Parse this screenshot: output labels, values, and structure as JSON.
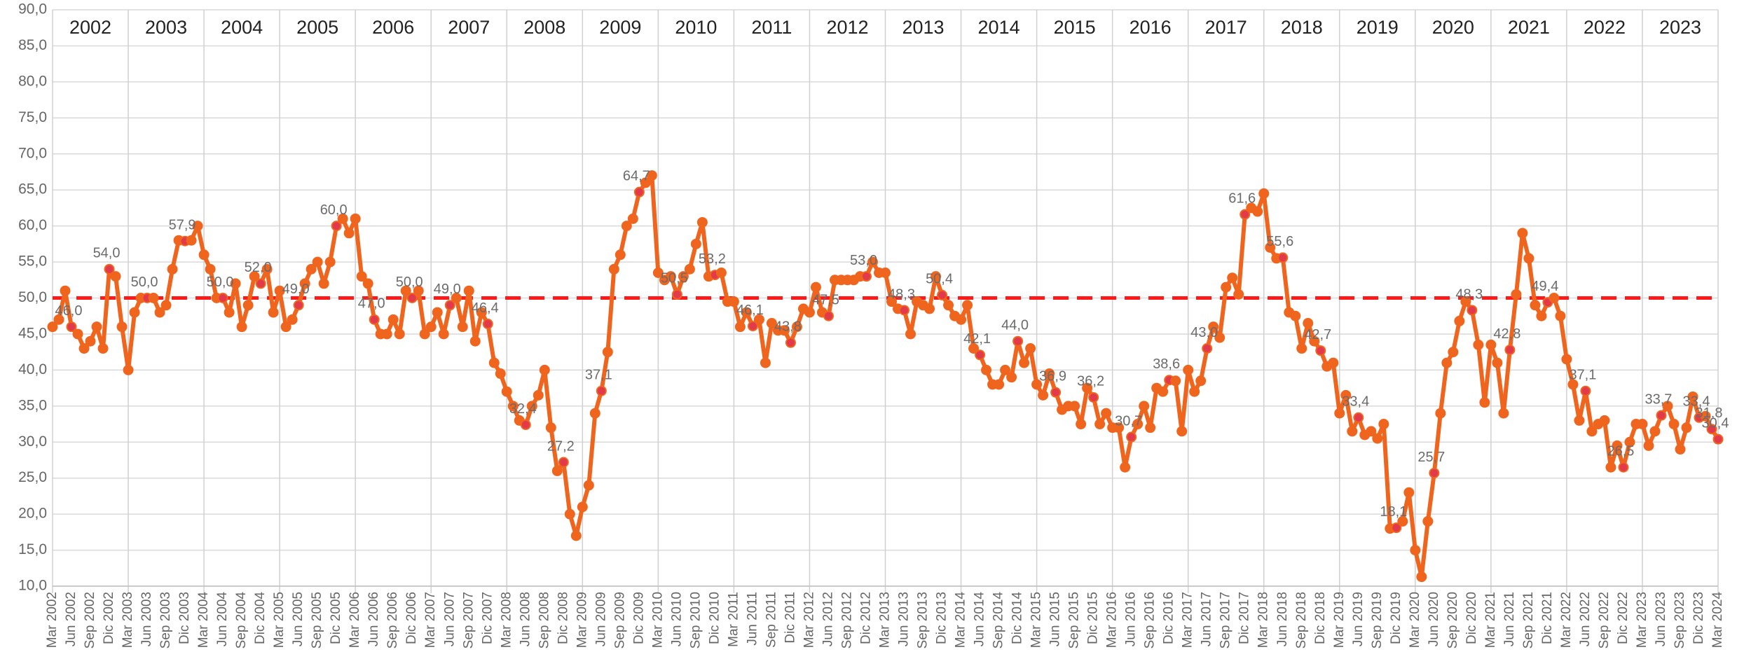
{
  "chart_data": {
    "type": "line",
    "periods": [
      "2002",
      "2003",
      "2004",
      "2005",
      "2006",
      "2007",
      "2008",
      "2009",
      "2010",
      "2011",
      "2012",
      "2013",
      "2014",
      "2015",
      "2016",
      "2017",
      "2018",
      "2019",
      "2020",
      "2021",
      "2022",
      "2023"
    ],
    "categories": [
      "Mar 2002",
      null,
      null,
      "Jun 2002",
      null,
      null,
      "Sep 2002",
      null,
      null,
      "Dic 2002",
      null,
      null,
      "Mar 2003",
      null,
      null,
      "Jun 2003",
      null,
      null,
      "Sep 2003",
      null,
      null,
      "Dic 2003",
      null,
      null,
      "Mar 2004",
      null,
      null,
      "Jun 2004",
      null,
      null,
      "Sep 2004",
      null,
      null,
      "Dic 2004",
      null,
      null,
      "Mar 2005",
      null,
      null,
      "Jun 2005",
      null,
      null,
      "Sep 2005",
      null,
      null,
      "Dic 2005",
      null,
      null,
      "Mar 2006",
      null,
      null,
      "Jun 2006",
      null,
      null,
      "Sep 2006",
      null,
      null,
      "Dic 2006",
      null,
      null,
      "Mar 2007",
      null,
      null,
      "Jun 2007",
      null,
      null,
      "Sep 2007",
      null,
      null,
      "Dic 2007",
      null,
      null,
      "Mar 2008",
      null,
      null,
      "Jun 2008",
      null,
      null,
      "Sep 2008",
      null,
      null,
      "Dic 2008",
      null,
      null,
      "Mar 2009",
      null,
      null,
      "Jun 2009",
      null,
      null,
      "Sep 2009",
      null,
      null,
      "Dic 2009",
      null,
      null,
      "Mar 2010",
      null,
      null,
      "Jun 2010",
      null,
      null,
      "Sep 2010",
      null,
      null,
      "Dic 2010",
      null,
      null,
      "Mar 2011",
      null,
      null,
      "Jun 2011",
      null,
      null,
      "Sep 2011",
      null,
      null,
      "Dic 2011",
      null,
      null,
      "Mar 2012",
      null,
      null,
      "Jun 2012",
      null,
      null,
      "Sep 2012",
      null,
      null,
      "Dic 2012",
      null,
      null,
      "Mar 2013",
      null,
      null,
      "Jun 2013",
      null,
      null,
      "Sep 2013",
      null,
      null,
      "Dic 2013",
      null,
      null,
      "Mar 2014",
      null,
      null,
      "Jun 2014",
      null,
      null,
      "Sep 2014",
      null,
      null,
      "Dic 2014",
      null,
      null,
      "Mar 2015",
      null,
      null,
      "Jun 2015",
      null,
      null,
      "Sep 2015",
      null,
      null,
      "Dic 2015",
      null,
      null,
      "Mar 2016",
      null,
      null,
      "Jun 2016",
      null,
      null,
      "Sep 2016",
      null,
      null,
      "Dic 2016",
      null,
      null,
      "Mar 2017",
      null,
      null,
      "Jun 2017",
      null,
      null,
      "Sep 2017",
      null,
      null,
      "Dic 2017",
      null,
      null,
      "Mar 2018",
      null,
      null,
      "Jun 2018",
      null,
      null,
      "Sep 2018",
      null,
      null,
      "Dic 2018",
      null,
      null,
      "Mar 2019",
      null,
      null,
      "Jun 2019",
      null,
      null,
      "Sep 2019",
      null,
      null,
      "Dic 2019",
      null,
      null,
      "Mar 2020",
      null,
      null,
      "Jun 2020",
      null,
      null,
      "Sep 2020",
      null,
      null,
      "Dic 2020",
      null,
      null,
      "Mar 2021",
      null,
      null,
      "Jun 2021",
      null,
      null,
      "Sep 2021",
      null,
      null,
      "Dic 2021",
      null,
      null,
      "Mar 2022",
      null,
      null,
      "Jun 2022",
      null,
      null,
      "Sep 2022",
      null,
      null,
      "Dic 2022",
      null,
      null,
      "Mar 2023",
      null,
      null,
      "Jun 2023",
      null,
      null,
      "Sep 2023",
      null,
      null,
      "Dic 2023",
      null,
      null,
      "Mar 2024"
    ],
    "series": [
      {
        "color": "#f0651e",
        "highlight_color": "#e23a4a",
        "values": [
          46,
          47,
          51,
          46,
          45,
          43,
          44,
          46,
          43,
          54,
          53,
          46,
          40,
          48,
          50,
          50,
          50,
          48,
          49,
          54,
          58,
          57.9,
          58,
          60,
          56,
          54,
          50,
          50,
          48,
          52,
          46,
          49,
          53,
          52,
          54,
          48,
          51,
          46,
          47,
          49,
          52,
          54,
          55,
          52,
          55,
          60,
          61,
          59,
          61,
          53,
          52,
          47,
          45,
          45,
          47,
          45,
          51,
          50,
          51,
          45,
          46,
          48,
          45,
          49,
          50,
          46,
          51,
          44,
          48,
          46.4,
          41,
          39.5,
          37,
          35,
          33,
          32.4,
          35,
          36.5,
          40,
          32,
          26,
          27.2,
          20,
          17,
          21,
          24,
          34,
          37.1,
          42.5,
          54,
          56,
          60,
          61,
          64.7,
          66,
          67,
          53.5,
          52.5,
          53,
          50.5,
          53,
          54,
          57.5,
          60.5,
          53,
          53.2,
          53.5,
          49.5,
          49.5,
          46,
          48,
          46.1,
          47,
          41,
          46.5,
          45.5,
          45.5,
          43.8,
          46,
          48.5,
          48,
          51.5,
          48,
          47.5,
          52.5,
          52.5,
          52.5,
          52.5,
          53,
          53,
          55,
          53.5,
          53.5,
          49.5,
          48.5,
          48.3,
          45,
          49.5,
          49,
          48.5,
          53,
          50.4,
          49,
          47.5,
          47,
          49,
          43,
          42.1,
          40,
          38,
          38,
          40,
          39,
          44,
          41,
          43,
          38,
          36.5,
          39.5,
          36.9,
          34.5,
          35,
          35,
          32.5,
          37.5,
          36.2,
          32.5,
          34,
          32,
          32,
          26.5,
          30.7,
          32.5,
          35,
          32,
          37.5,
          37,
          38.6,
          38.5,
          31.5,
          40,
          37,
          38.5,
          43,
          46,
          44.5,
          51.5,
          52.8,
          50.5,
          61.6,
          62.5,
          62,
          64.5,
          57,
          55.5,
          55.6,
          48,
          47.5,
          43,
          46.5,
          44,
          42.7,
          40.5,
          41,
          34,
          36.5,
          31.5,
          33.4,
          31,
          31.5,
          30.5,
          32.5,
          18,
          18.1,
          19,
          23,
          15,
          11.3,
          19,
          25.7,
          34,
          41,
          42.5,
          46.8,
          49.5,
          48.3,
          43.5,
          35.5,
          43.5,
          41,
          34,
          42.8,
          50.5,
          59,
          55.5,
          49,
          47.5,
          49.4,
          50,
          47.5,
          41.5,
          38,
          33,
          37.1,
          31.5,
          32.5,
          33,
          26.5,
          29.5,
          26.5,
          30,
          32.5,
          32.5,
          29.5,
          31.5,
          33.7,
          35,
          32.5,
          29,
          32,
          36.3,
          33.4,
          33.6,
          31.8,
          30.4
        ],
        "value_labels": [
          null,
          null,
          null,
          "46,0",
          null,
          null,
          null,
          null,
          null,
          "54,0",
          null,
          null,
          null,
          null,
          null,
          "50,0",
          null,
          null,
          null,
          null,
          null,
          "57,9",
          null,
          null,
          null,
          null,
          null,
          "50,0",
          null,
          null,
          null,
          null,
          null,
          "52,0",
          null,
          null,
          null,
          null,
          null,
          "49,0",
          null,
          null,
          null,
          null,
          null,
          "60,0",
          null,
          null,
          null,
          null,
          null,
          "47,0",
          null,
          null,
          null,
          null,
          null,
          "50,0",
          null,
          null,
          null,
          null,
          null,
          "49,0",
          null,
          null,
          null,
          null,
          null,
          "46,4",
          null,
          null,
          null,
          null,
          null,
          "32,4",
          null,
          null,
          null,
          null,
          null,
          "27,2",
          null,
          null,
          null,
          null,
          null,
          "37,1",
          null,
          null,
          null,
          null,
          null,
          "64,7",
          null,
          null,
          null,
          null,
          null,
          "50,5",
          null,
          null,
          null,
          null,
          null,
          "53,2",
          null,
          null,
          null,
          null,
          null,
          "46,1",
          null,
          null,
          null,
          null,
          null,
          "43,8",
          null,
          null,
          null,
          null,
          null,
          "47,5",
          null,
          null,
          null,
          null,
          null,
          "53,0",
          null,
          null,
          null,
          null,
          null,
          "48,3",
          null,
          null,
          null,
          null,
          null,
          "50,4",
          null,
          null,
          null,
          null,
          null,
          "42,1",
          null,
          null,
          null,
          null,
          null,
          "44,0",
          null,
          null,
          null,
          null,
          null,
          "36,9",
          null,
          null,
          null,
          null,
          null,
          "36,2",
          null,
          null,
          null,
          null,
          null,
          "30,7",
          null,
          null,
          null,
          null,
          null,
          "38,6",
          null,
          null,
          null,
          null,
          null,
          "43,0",
          null,
          null,
          null,
          null,
          null,
          "61,6",
          null,
          null,
          null,
          null,
          null,
          "55,6",
          null,
          null,
          null,
          null,
          null,
          "42,7",
          null,
          null,
          null,
          null,
          null,
          "33,4",
          null,
          null,
          null,
          null,
          null,
          "18,1",
          null,
          null,
          null,
          null,
          null,
          "25,7",
          null,
          null,
          null,
          null,
          null,
          "48,3",
          null,
          null,
          null,
          null,
          null,
          "42,8",
          null,
          null,
          null,
          null,
          null,
          "49,4",
          null,
          null,
          null,
          null,
          null,
          "37,1",
          null,
          null,
          null,
          null,
          null,
          "26,5",
          null,
          null,
          null,
          null,
          null,
          "33,7",
          null,
          null,
          null,
          null,
          null,
          "33,4",
          null,
          "31,8",
          "30,4"
        ]
      }
    ],
    "reference_line": {
      "value": 50,
      "color": "#ff1a1a",
      "style": "dashed"
    },
    "ylim": [
      10,
      90
    ],
    "yticks": [
      {
        "value": 10,
        "label": "10,0"
      },
      {
        "value": 15,
        "label": "15,0"
      },
      {
        "value": 20,
        "label": "20,0"
      },
      {
        "value": 25,
        "label": "25,0"
      },
      {
        "value": 30,
        "label": "30,0"
      },
      {
        "value": 35,
        "label": "35,0"
      },
      {
        "value": 40,
        "label": "40,0"
      },
      {
        "value": 45,
        "label": "45,0"
      },
      {
        "value": 50,
        "label": "50,0"
      },
      {
        "value": 55,
        "label": "55,0"
      },
      {
        "value": 60,
        "label": "60,0"
      },
      {
        "value": 65,
        "label": "65,0"
      },
      {
        "value": 70,
        "label": "70,0"
      },
      {
        "value": 75,
        "label": "75,0"
      },
      {
        "value": 80,
        "label": "80,0"
      },
      {
        "value": 85,
        "label": "85,0"
      },
      {
        "value": 90,
        "label": "90,0"
      }
    ],
    "grid": true
  }
}
